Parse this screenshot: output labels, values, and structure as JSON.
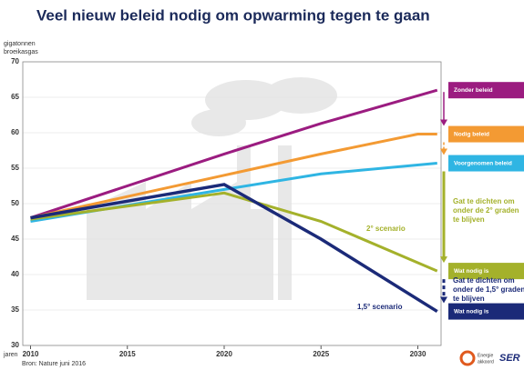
{
  "chart_data": {
    "type": "line",
    "title": "Veel nieuw beleid nodig om opwarming tegen te gaan",
    "y_label": [
      "gigatonnen",
      "broeikasgas"
    ],
    "x_label": "jaren",
    "source": "Bron: Nature juni 2016",
    "logos": [
      "Energie",
      "akkoord",
      "SER"
    ],
    "xlim": [
      2009.6,
      2031.2
    ],
    "ylim": [
      30,
      70
    ],
    "xticks": [
      2010,
      2015,
      2020,
      2025,
      2030
    ],
    "yticks": [
      30,
      35,
      40,
      45,
      50,
      55,
      60,
      65,
      70
    ],
    "grid": true,
    "series": [
      {
        "name": "Zonder beleid",
        "color": "#9b1c80",
        "x": [
          2010,
          2020,
          2025,
          2031
        ],
        "values": [
          48,
          57,
          61.3,
          66
        ]
      },
      {
        "name": "Nodig beleid",
        "color": "#f39a33",
        "x": [
          2010,
          2020,
          2025,
          2030,
          2031
        ],
        "values": [
          48,
          54,
          57,
          59.8,
          59.8
        ]
      },
      {
        "name": "Voorgenomen beleid",
        "color": "#2fb5e3",
        "x": [
          2010,
          2020,
          2025,
          2031
        ],
        "values": [
          47.5,
          52,
          54.2,
          55.7
        ]
      },
      {
        "name": "Wat nodig is",
        "annotation": "2° scenario",
        "color": "#a4b12b",
        "x": [
          2010,
          2020,
          2025,
          2031
        ],
        "values": [
          47.8,
          51.5,
          47.5,
          40.5
        ]
      },
      {
        "name": "Wat nodig is",
        "annotation": "1,5° scenario",
        "color": "#1b2a78",
        "x": [
          2010,
          2020,
          2025,
          2031
        ],
        "values": [
          48,
          52.7,
          45,
          34.8
        ]
      }
    ],
    "gap_annotations": [
      {
        "color": "#a4b12b",
        "lines": [
          "Gat te dichten om",
          "onder de 2° graden",
          "te blijven"
        ]
      },
      {
        "color": "#1b2a78",
        "lines": [
          "Gat te dichten om",
          "onder de 1,5° graden",
          "te blijven"
        ]
      }
    ]
  }
}
